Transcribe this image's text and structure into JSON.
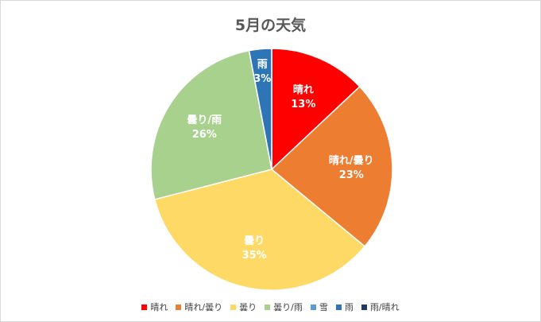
{
  "chart_data": {
    "type": "pie",
    "title": "5月の天気",
    "categories": [
      "晴れ",
      "晴れ/曇り",
      "曇り",
      "曇り/雨",
      "雪",
      "雨",
      "雨/晴れ"
    ],
    "values": [
      13,
      23,
      35,
      26,
      0,
      3,
      0
    ],
    "value_labels": [
      "13%",
      "23%",
      "35%",
      "26%",
      "",
      "3%",
      ""
    ],
    "colors": [
      "#ff0000",
      "#ed7d31",
      "#ffd966",
      "#a9d18e",
      "#5b9bd5",
      "#2e75b6",
      "#203864"
    ],
    "legend": "bottom"
  }
}
